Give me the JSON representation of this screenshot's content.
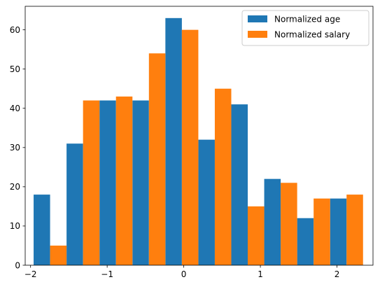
{
  "chart_data": {
    "type": "bar",
    "grouped_histogram": true,
    "bin_edges": [
      -1.96,
      -1.53,
      -1.1,
      -0.67,
      -0.24,
      0.19,
      0.62,
      1.05,
      1.48,
      1.91,
      2.34
    ],
    "series": [
      {
        "name": "Normalized age",
        "color": "#1f77b4",
        "values": [
          18,
          31,
          42,
          42,
          63,
          32,
          41,
          22,
          12,
          17
        ]
      },
      {
        "name": "Normalized salary",
        "color": "#ff7f0e",
        "values": [
          5,
          42,
          43,
          54,
          60,
          45,
          15,
          21,
          17,
          18
        ]
      }
    ],
    "xlim": [
      -2.07,
      2.47
    ],
    "ylim": [
      0,
      66
    ],
    "x_ticks": [
      {
        "value": -2,
        "label": "−2"
      },
      {
        "value": -1,
        "label": "−1"
      },
      {
        "value": 0,
        "label": "0"
      },
      {
        "value": 1,
        "label": "1"
      },
      {
        "value": 2,
        "label": "2"
      }
    ],
    "y_ticks": [
      {
        "value": 0,
        "label": "0"
      },
      {
        "value": 10,
        "label": "10"
      },
      {
        "value": 20,
        "label": "20"
      },
      {
        "value": 30,
        "label": "30"
      },
      {
        "value": 40,
        "label": "40"
      },
      {
        "value": 50,
        "label": "50"
      },
      {
        "value": 60,
        "label": "60"
      }
    ],
    "legend_position": "top-right",
    "grid": false,
    "title": "",
    "xlabel": "",
    "ylabel": ""
  }
}
